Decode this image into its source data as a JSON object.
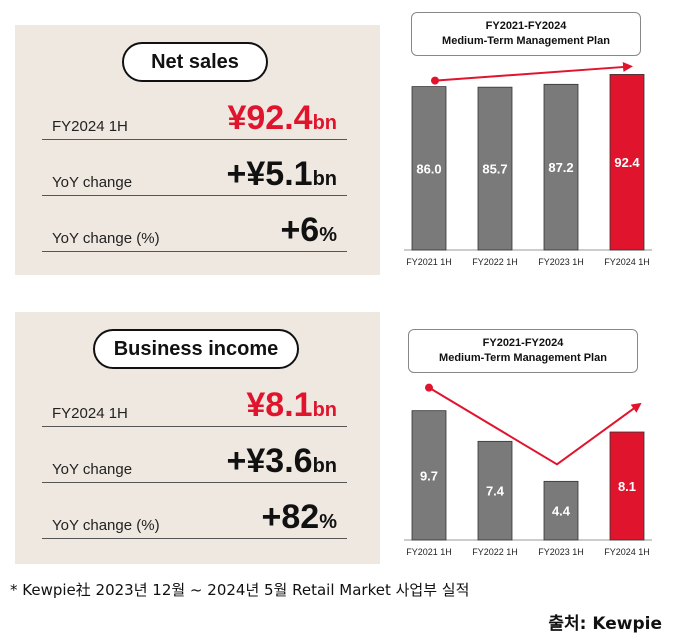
{
  "net_sales": {
    "title": "Net sales",
    "rows": [
      {
        "label": "FY2024 1H",
        "value": "¥92.4",
        "unit": "bn"
      },
      {
        "label": "YoY change",
        "value": "+¥5.1",
        "unit": "bn"
      },
      {
        "label": "YoY change (%)",
        "value": "+6",
        "unit": "%"
      }
    ]
  },
  "business_income": {
    "title": "Business income",
    "rows": [
      {
        "label": "FY2024 1H",
        "value": "¥8.1",
        "unit": "bn"
      },
      {
        "label": "YoY change",
        "value": "+¥3.6",
        "unit": "bn"
      },
      {
        "label": "YoY change (%)",
        "value": "+82",
        "unit": "%"
      }
    ]
  },
  "colors": {
    "gray_bar": "#7a7a7a",
    "red_bar": "#e0142c",
    "arrow": "#e0142c",
    "panel_bg": "#efe8e0"
  },
  "chart_data": [
    {
      "type": "bar",
      "title": "FY2021-FY2024",
      "subtitle": "Medium-Term Management Plan",
      "categories": [
        "FY2021 1H",
        "FY2022 1H",
        "FY2023 1H",
        "FY2024 1H"
      ],
      "values": [
        86.0,
        85.7,
        87.2,
        92.4
      ],
      "labels": [
        "86.0",
        "85.7",
        "87.2",
        "92.4"
      ],
      "highlight_index": 3,
      "ylim": [
        0,
        100
      ]
    },
    {
      "type": "bar",
      "title": "FY2021-FY2024",
      "subtitle": "Medium-Term Management Plan",
      "categories": [
        "FY2021 1H",
        "FY2022 1H",
        "FY2023 1H",
        "FY2024 1H"
      ],
      "values": [
        9.7,
        7.4,
        4.4,
        8.1
      ],
      "labels": [
        "9.7",
        "7.4",
        "4.4",
        "8.1"
      ],
      "highlight_index": 3,
      "ylim": [
        0,
        12
      ]
    }
  ],
  "footnote": "* Kewpie社 2023년 12월 ~ 2024년 5월 Retail Market 사업부 실적",
  "source": "출처: Kewpie"
}
